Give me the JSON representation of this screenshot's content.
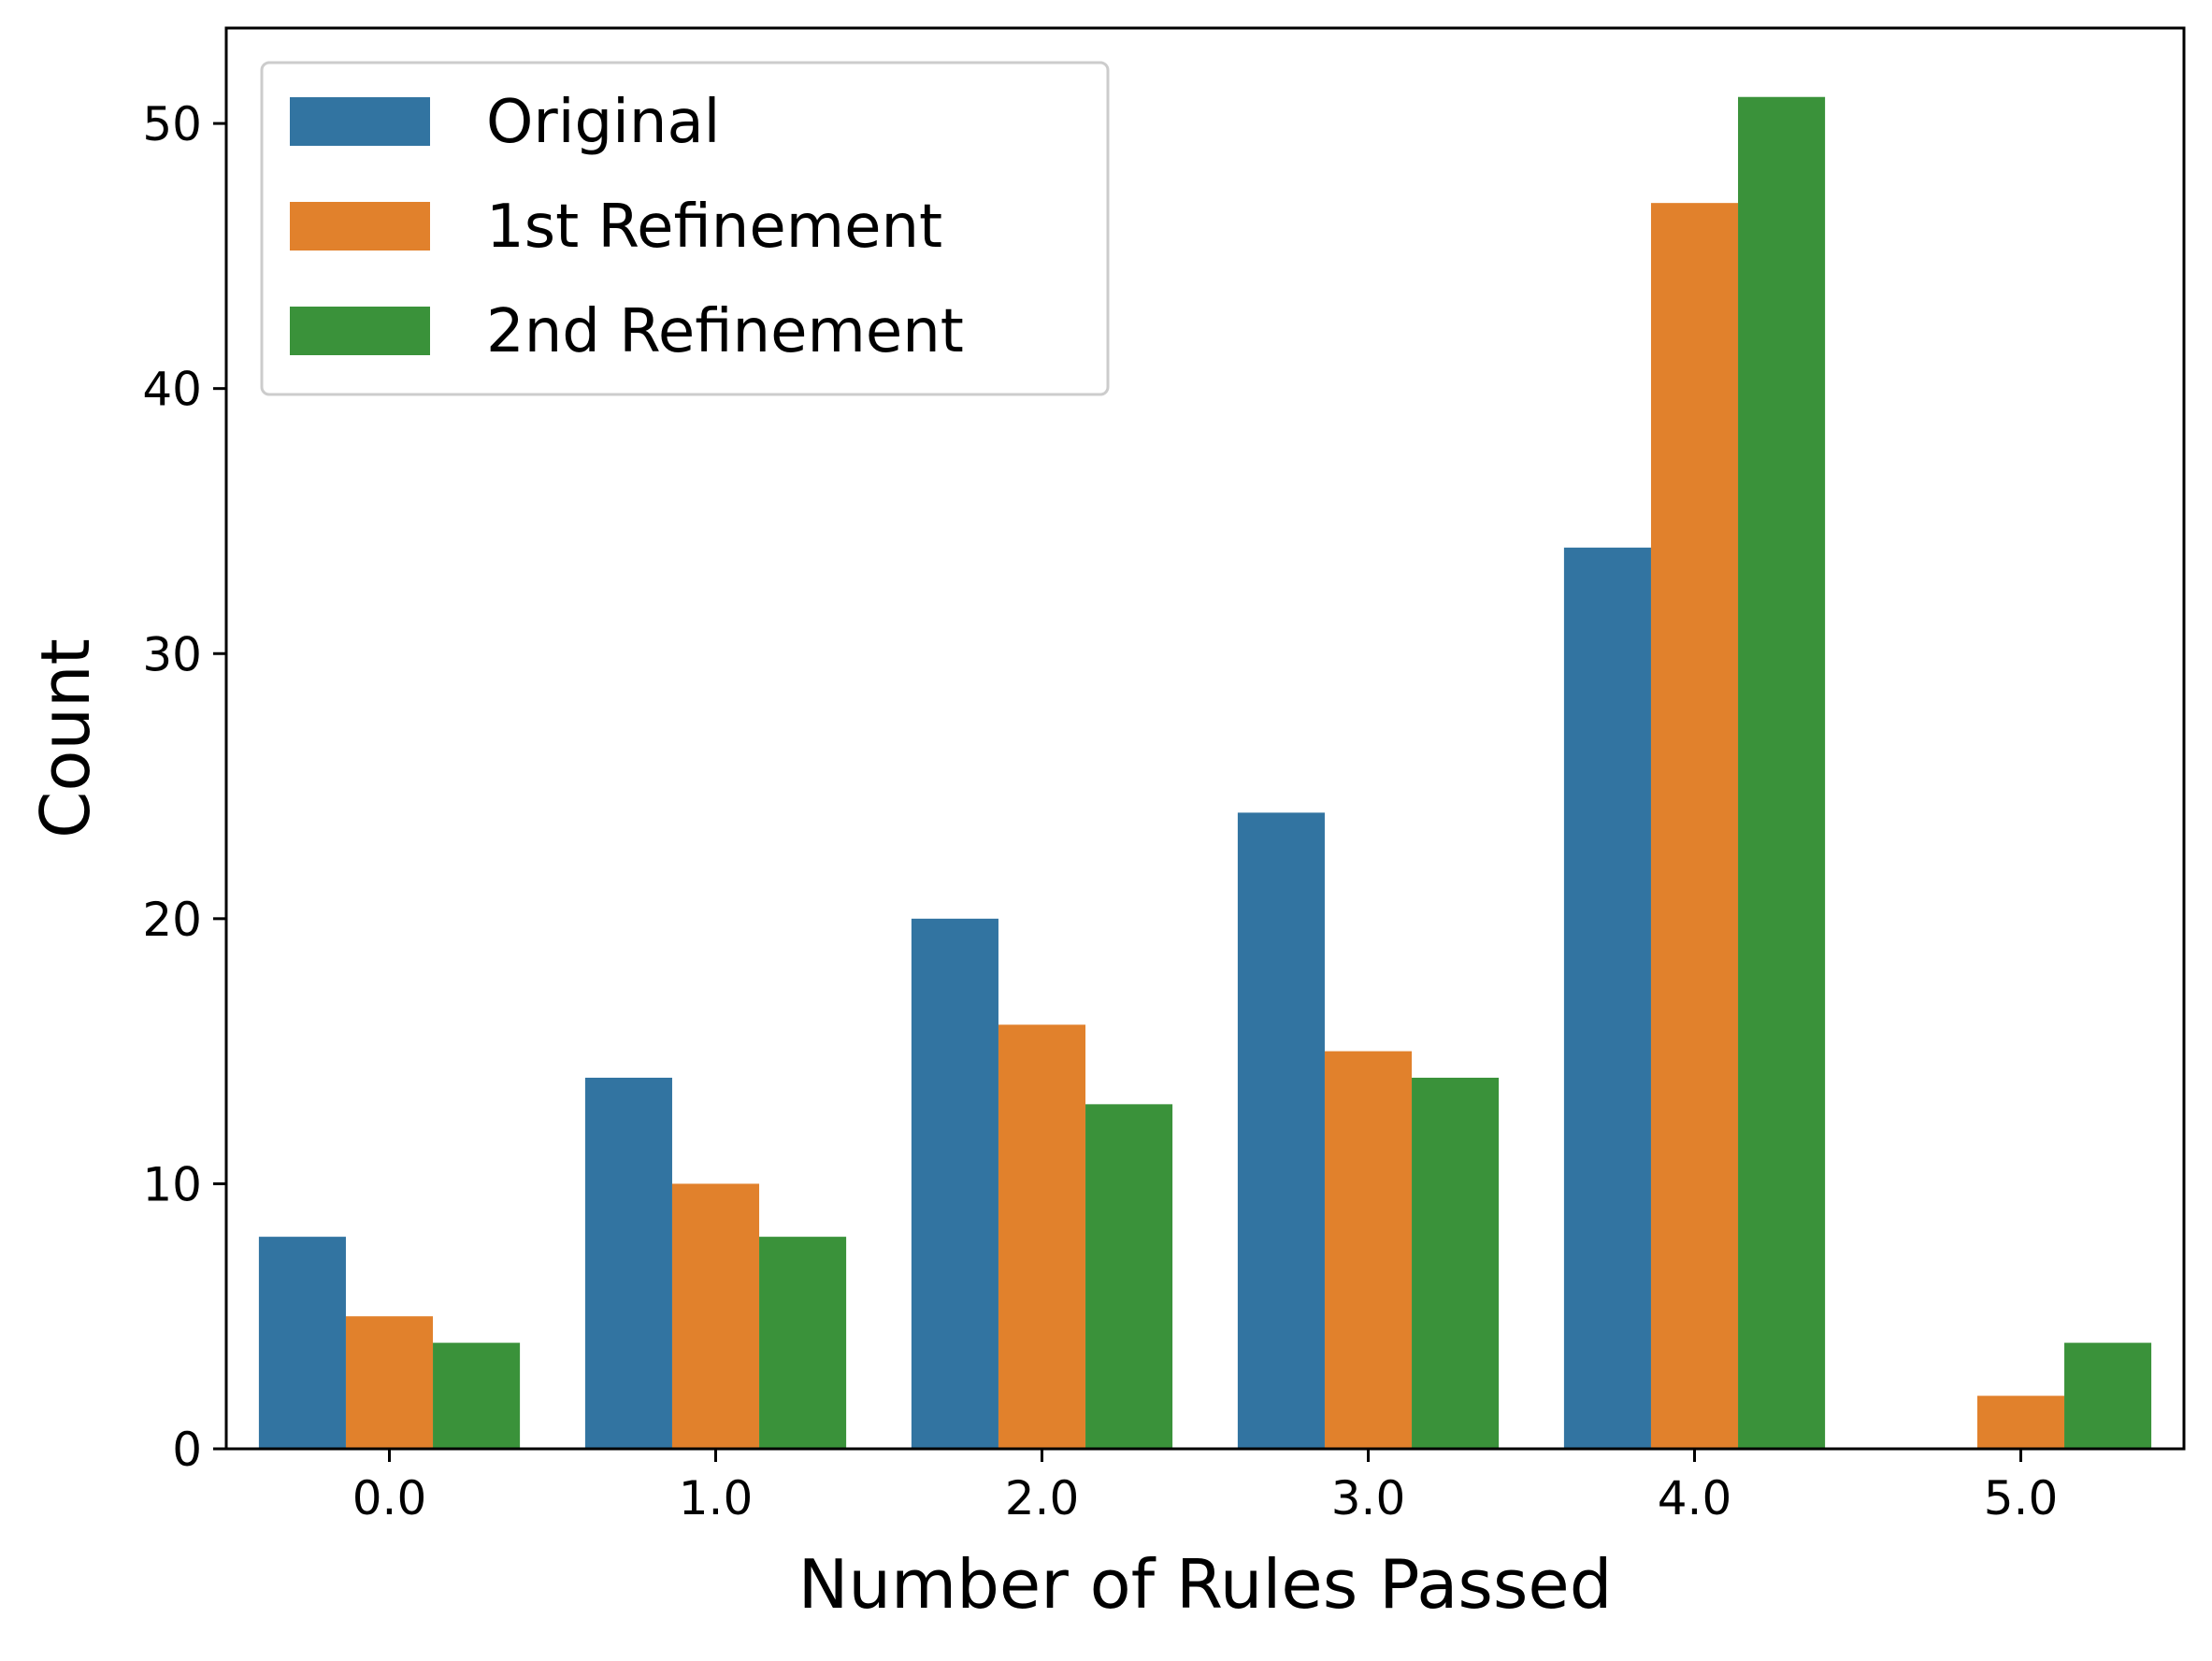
{
  "chart_data": {
    "type": "bar",
    "title": "",
    "xlabel": "Number of Rules Passed",
    "ylabel": "Count",
    "categories": [
      "0.0",
      "1.0",
      "2.0",
      "3.0",
      "4.0",
      "5.0"
    ],
    "series": [
      {
        "name": "Original",
        "color": "#3274a1",
        "values": [
          8,
          14,
          20,
          24,
          34,
          0
        ]
      },
      {
        "name": "1st Refinement",
        "color": "#e1812c",
        "values": [
          5,
          10,
          16,
          15,
          47,
          2
        ]
      },
      {
        "name": "2nd Refinement",
        "color": "#3a923a",
        "values": [
          4,
          8,
          13,
          14,
          51,
          4
        ]
      }
    ],
    "ylim": [
      0,
      53.6
    ],
    "yticks": [
      0,
      10,
      20,
      30,
      40,
      50
    ],
    "grid": false,
    "legend_position": "top-left"
  }
}
